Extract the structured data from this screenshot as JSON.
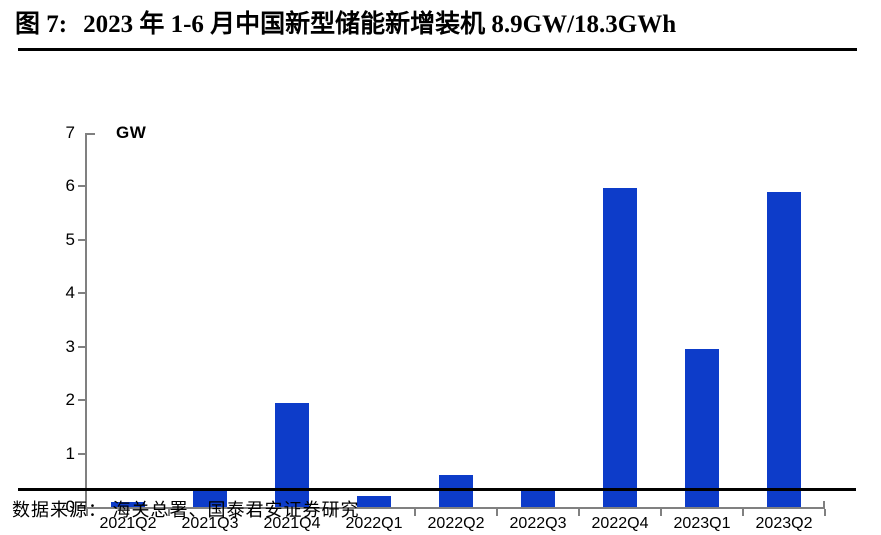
{
  "header": {
    "figure_label": "图 7:",
    "title": "2023 年 1-6 月中国新型储能新增装机 8.9GW/18.3GWh"
  },
  "chart_data": {
    "type": "bar",
    "title": "2023 年 1-6 月中国新型储能新增装机 8.9GW/18.3GWh",
    "ylabel": "GW",
    "xlabel": "",
    "categories": [
      "2021Q2",
      "2021Q3",
      "2021Q4",
      "2022Q1",
      "2022Q2",
      "2022Q3",
      "2022Q4",
      "2023Q1",
      "2023Q2"
    ],
    "values": [
      0.1,
      0.3,
      1.95,
      0.2,
      0.6,
      0.35,
      5.97,
      2.95,
      5.9
    ],
    "ylim": [
      0,
      7
    ],
    "yticks": [
      0,
      1,
      2,
      3,
      4,
      5,
      6,
      7
    ],
    "grid": false,
    "legend": "none",
    "bar_color": "#0D3CC9",
    "axis_color": "#808080"
  },
  "footer": {
    "source": "数据来源： 海关总署、国泰君安证券研究"
  }
}
